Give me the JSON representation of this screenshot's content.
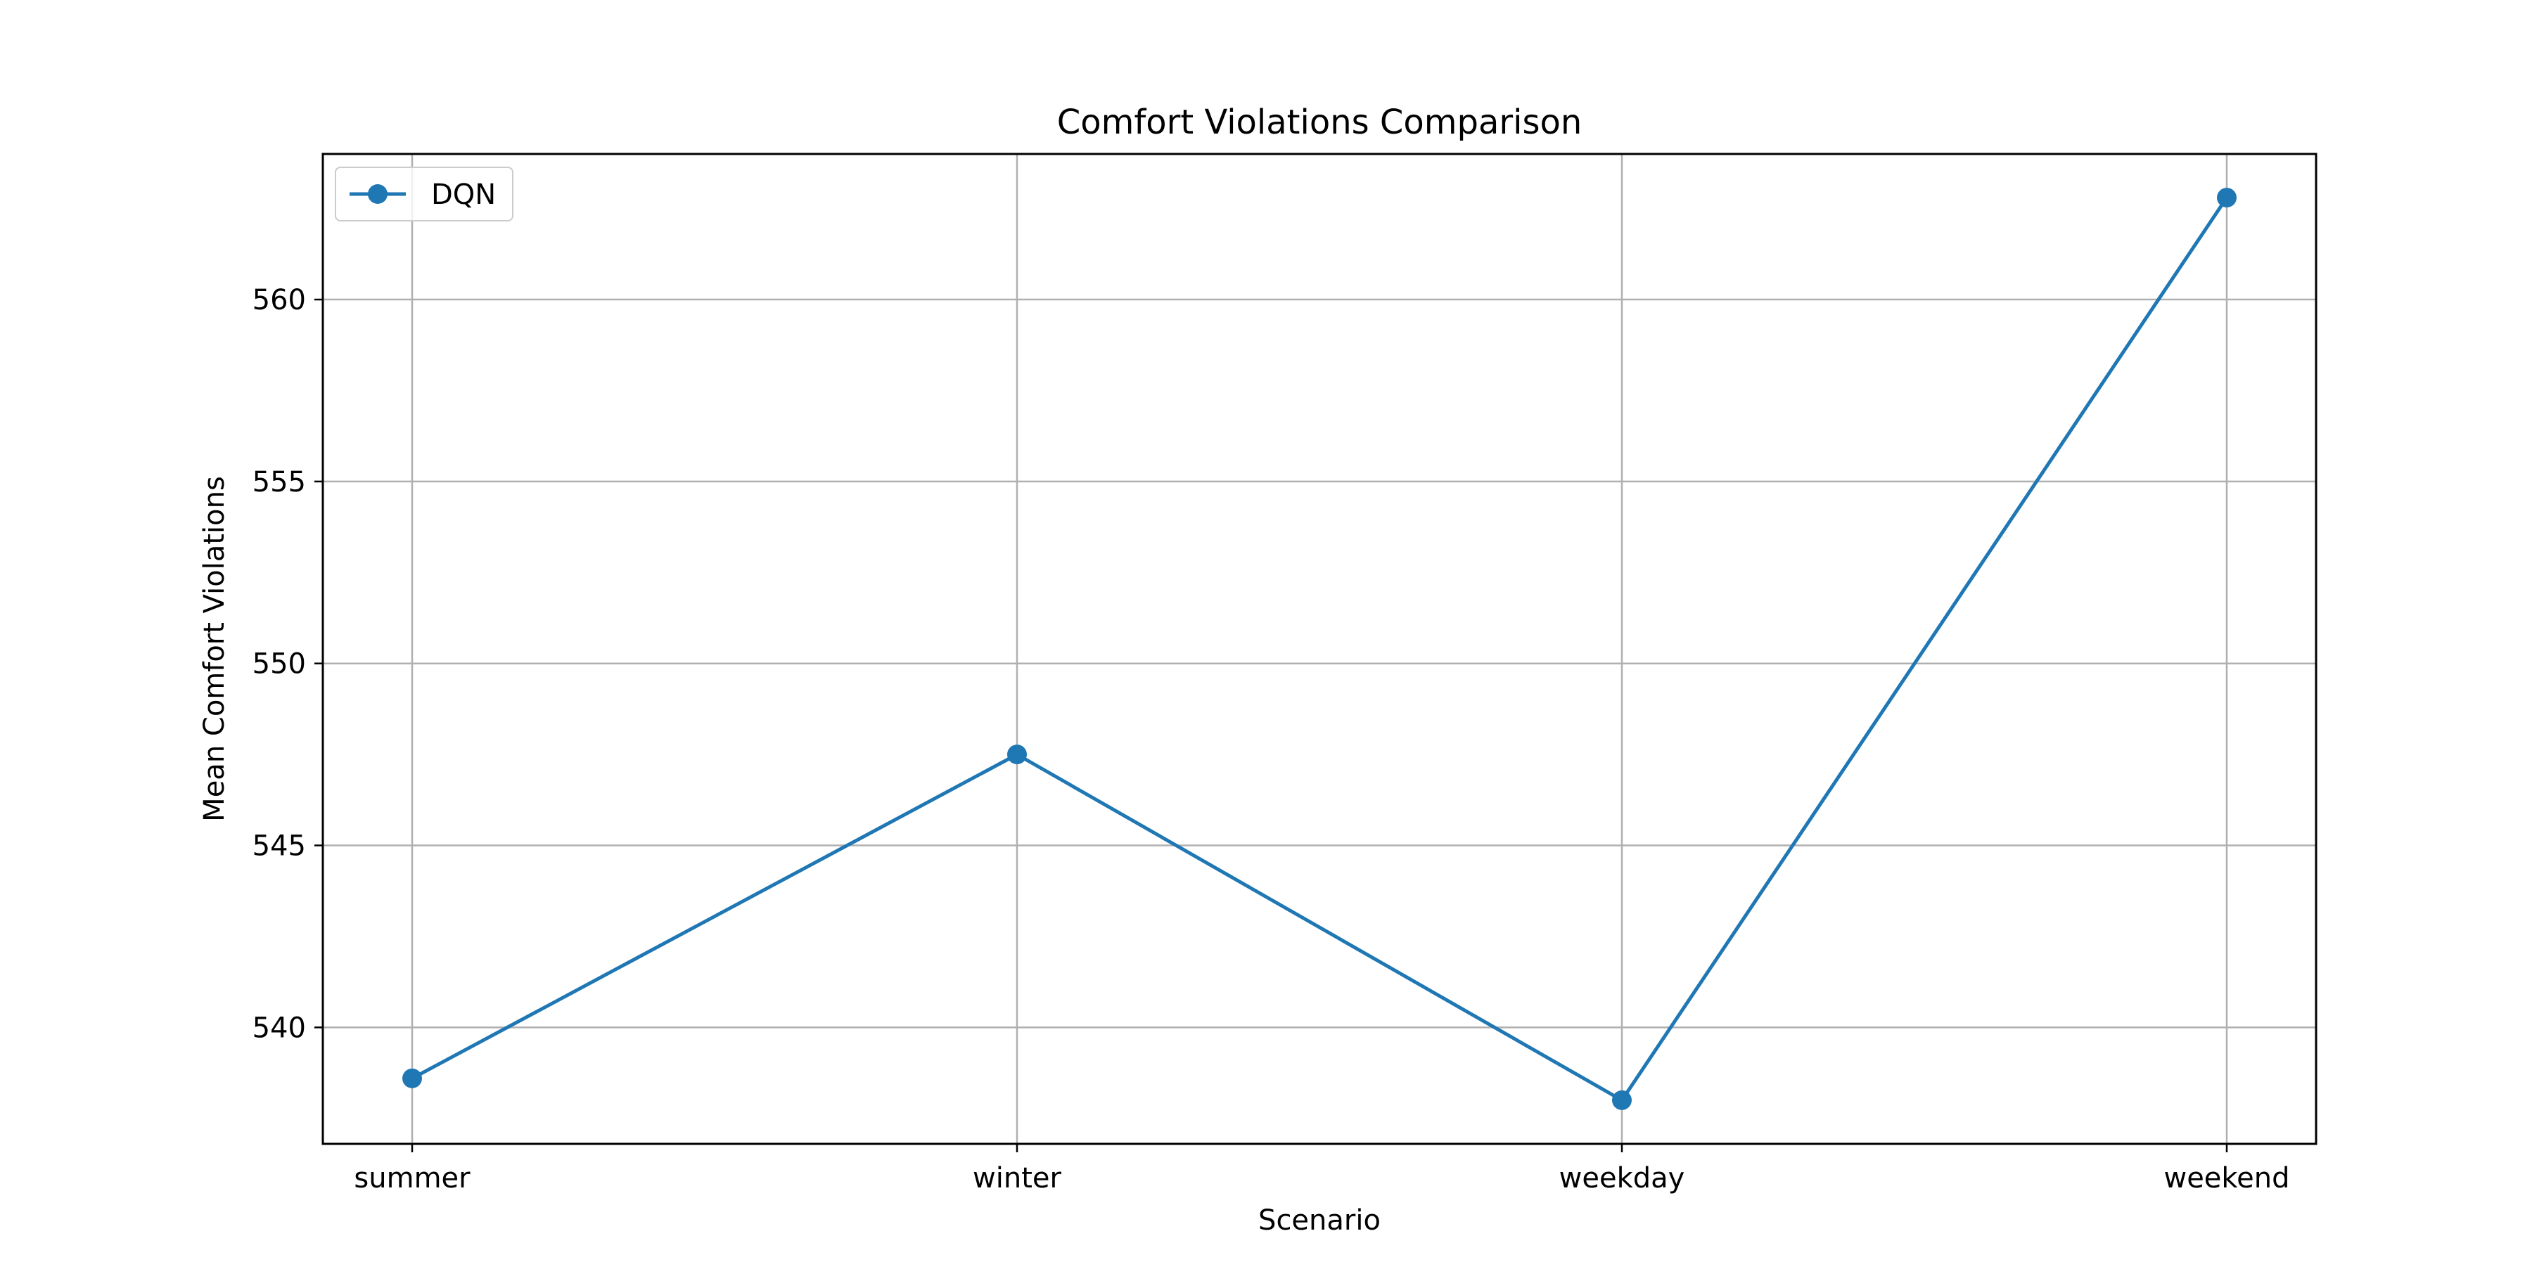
{
  "chart_data": {
    "type": "line",
    "title": "Comfort Violations Comparison",
    "xlabel": "Scenario",
    "ylabel": "Mean Comfort Violations",
    "categories": [
      "summer",
      "winter",
      "weekday",
      "weekend"
    ],
    "series": [
      {
        "name": "DQN",
        "values": [
          538.6,
          547.5,
          538.0,
          562.8
        ],
        "color": "#1f77b4",
        "marker": "circle"
      }
    ],
    "ylim": [
      536.8,
      564.0
    ],
    "yticks": [
      540,
      545,
      550,
      555,
      560
    ],
    "grid": true,
    "legend_position": "top-left"
  }
}
